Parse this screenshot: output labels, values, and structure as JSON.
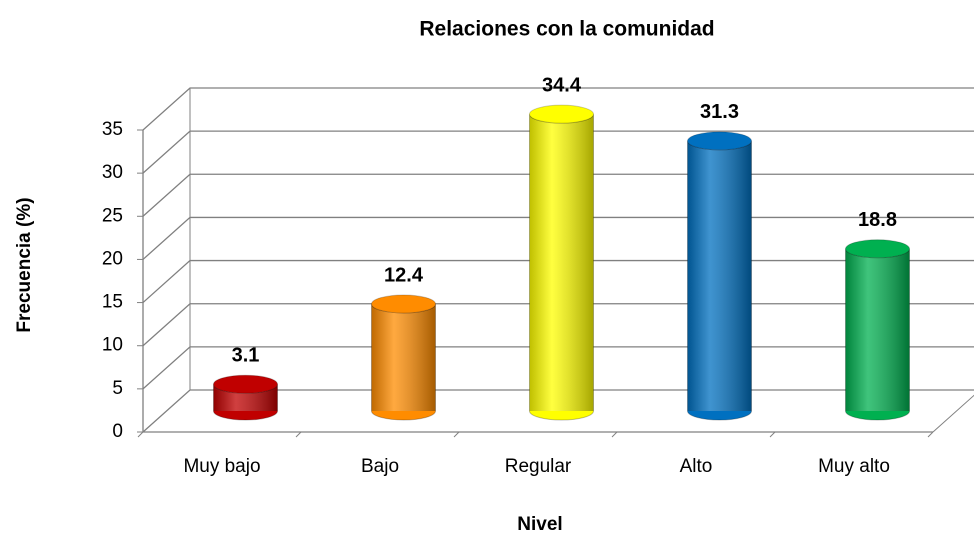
{
  "chart_data": {
    "type": "bar3d",
    "title": "Relaciones con la comunidad",
    "x_label": "Nivel",
    "y_label": "Frecuencia (%)",
    "categories": [
      "Muy bajo",
      "Bajo",
      "Regular",
      "Alto",
      "Muy alto"
    ],
    "values": [
      3.1,
      12.4,
      34.4,
      31.3,
      18.8
    ],
    "colors": [
      "#c00000",
      "#ff8c00",
      "#ffff00",
      "#0070c0",
      "#00b050"
    ],
    "ylim": [
      0,
      35
    ],
    "yticks": [
      0,
      5,
      10,
      15,
      20,
      25,
      30,
      35
    ],
    "grid": true
  }
}
